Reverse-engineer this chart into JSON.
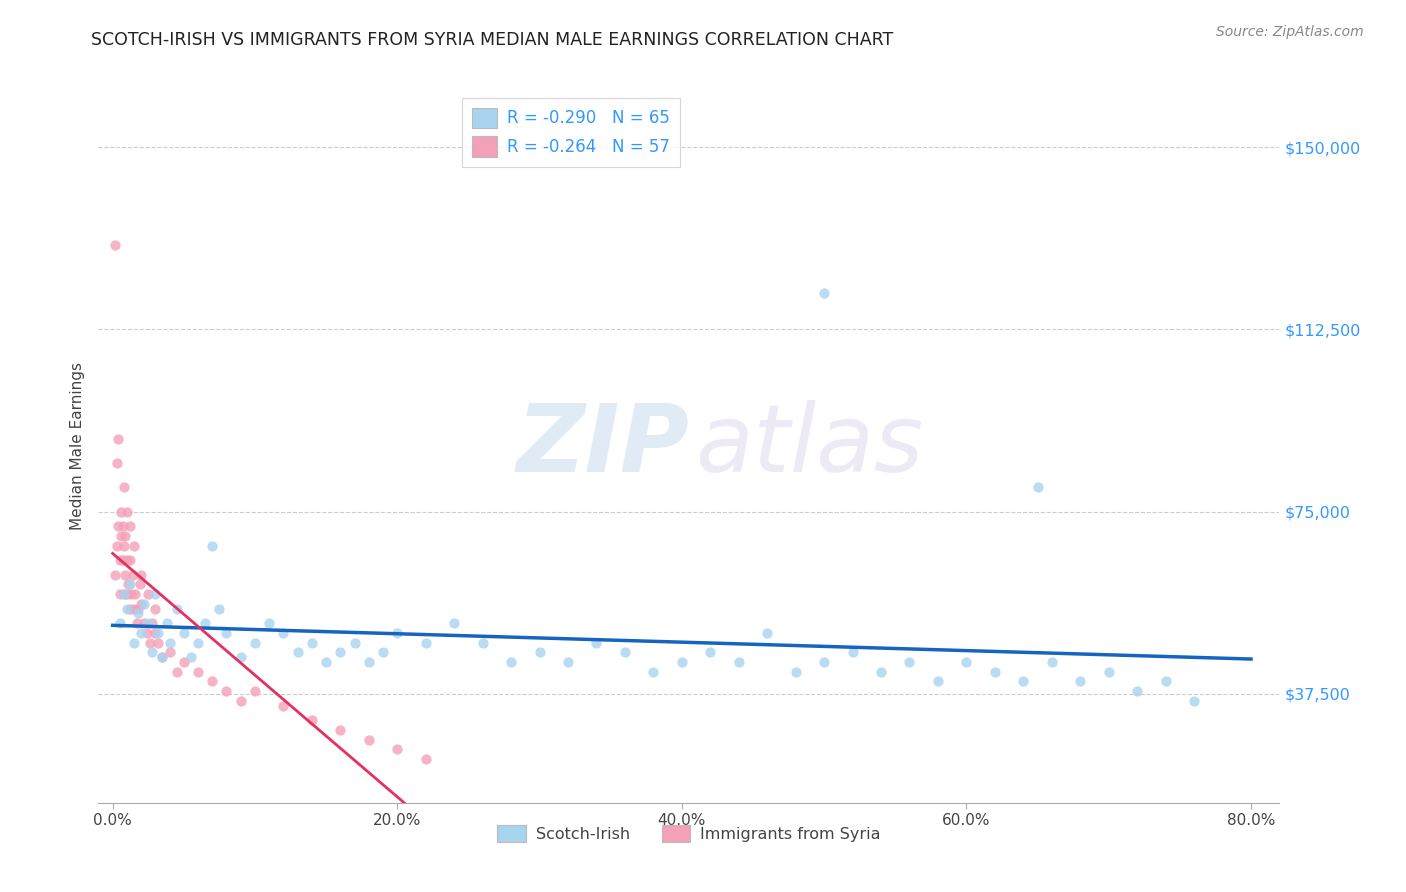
{
  "title": "SCOTCH-IRISH VS IMMIGRANTS FROM SYRIA MEDIAN MALE EARNINGS CORRELATION CHART",
  "source_text": "Source: ZipAtlas.com",
  "ylabel": "Median Male Earnings",
  "xlabel_ticks": [
    "0.0%",
    "20.0%",
    "40.0%",
    "60.0%",
    "80.0%"
  ],
  "xlabel_tick_vals": [
    0.0,
    0.2,
    0.4,
    0.6,
    0.8
  ],
  "ytick_labels": [
    "$37,500",
    "$75,000",
    "$112,500",
    "$150,000"
  ],
  "ytick_vals": [
    37500,
    75000,
    112500,
    150000
  ],
  "ylim": [
    15000,
    162000
  ],
  "xlim": [
    -0.01,
    0.82
  ],
  "legend_items": [
    {
      "label": "R = -0.290   N = 65",
      "color": "#a8d4f0"
    },
    {
      "label": "R = -0.264   N = 57",
      "color": "#f4a0b8"
    }
  ],
  "legend_labels": [
    "Scotch-Irish",
    "Immigrants from Syria"
  ],
  "scotch_irish_color": "#a8d4f0",
  "syria_color": "#f4a0b8",
  "trendline_scotch_color": "#1565c0",
  "trendline_syria_color": "#e53060",
  "watermark_zip": "ZIP",
  "watermark_atlas": "atlas",
  "scotch_irish_x": [
    0.005,
    0.008,
    0.01,
    0.012,
    0.015,
    0.018,
    0.02,
    0.022,
    0.025,
    0.028,
    0.03,
    0.032,
    0.035,
    0.038,
    0.04,
    0.045,
    0.05,
    0.055,
    0.06,
    0.065,
    0.07,
    0.075,
    0.08,
    0.09,
    0.1,
    0.11,
    0.12,
    0.13,
    0.14,
    0.15,
    0.16,
    0.17,
    0.18,
    0.19,
    0.2,
    0.22,
    0.24,
    0.26,
    0.28,
    0.3,
    0.32,
    0.34,
    0.36,
    0.38,
    0.4,
    0.42,
    0.44,
    0.46,
    0.48,
    0.5,
    0.52,
    0.54,
    0.56,
    0.58,
    0.6,
    0.62,
    0.64,
    0.66,
    0.68,
    0.7,
    0.72,
    0.74,
    0.76,
    0.5,
    0.65
  ],
  "scotch_irish_y": [
    52000,
    58000,
    55000,
    60000,
    48000,
    54000,
    50000,
    56000,
    52000,
    46000,
    58000,
    50000,
    45000,
    52000,
    48000,
    55000,
    50000,
    45000,
    48000,
    52000,
    68000,
    55000,
    50000,
    45000,
    48000,
    52000,
    50000,
    46000,
    48000,
    44000,
    46000,
    48000,
    44000,
    46000,
    50000,
    48000,
    52000,
    48000,
    44000,
    46000,
    44000,
    48000,
    46000,
    42000,
    44000,
    46000,
    44000,
    50000,
    42000,
    44000,
    46000,
    42000,
    44000,
    40000,
    44000,
    42000,
    40000,
    44000,
    40000,
    42000,
    38000,
    40000,
    36000,
    120000,
    80000
  ],
  "syria_x": [
    0.002,
    0.003,
    0.004,
    0.005,
    0.005,
    0.006,
    0.006,
    0.007,
    0.007,
    0.008,
    0.008,
    0.009,
    0.009,
    0.01,
    0.01,
    0.011,
    0.012,
    0.012,
    0.013,
    0.014,
    0.015,
    0.016,
    0.017,
    0.018,
    0.019,
    0.02,
    0.022,
    0.024,
    0.026,
    0.028,
    0.03,
    0.032,
    0.035,
    0.04,
    0.045,
    0.05,
    0.06,
    0.07,
    0.08,
    0.09,
    0.1,
    0.12,
    0.14,
    0.16,
    0.18,
    0.2,
    0.22,
    0.008,
    0.01,
    0.012,
    0.015,
    0.02,
    0.025,
    0.03,
    0.002,
    0.003,
    0.004
  ],
  "syria_y": [
    62000,
    68000,
    72000,
    58000,
    65000,
    70000,
    75000,
    65000,
    72000,
    68000,
    58000,
    62000,
    70000,
    65000,
    58000,
    60000,
    55000,
    65000,
    58000,
    62000,
    55000,
    58000,
    52000,
    55000,
    60000,
    56000,
    52000,
    50000,
    48000,
    52000,
    50000,
    48000,
    45000,
    46000,
    42000,
    44000,
    42000,
    40000,
    38000,
    36000,
    38000,
    35000,
    32000,
    30000,
    28000,
    26000,
    24000,
    80000,
    75000,
    72000,
    68000,
    62000,
    58000,
    55000,
    130000,
    85000,
    90000
  ]
}
